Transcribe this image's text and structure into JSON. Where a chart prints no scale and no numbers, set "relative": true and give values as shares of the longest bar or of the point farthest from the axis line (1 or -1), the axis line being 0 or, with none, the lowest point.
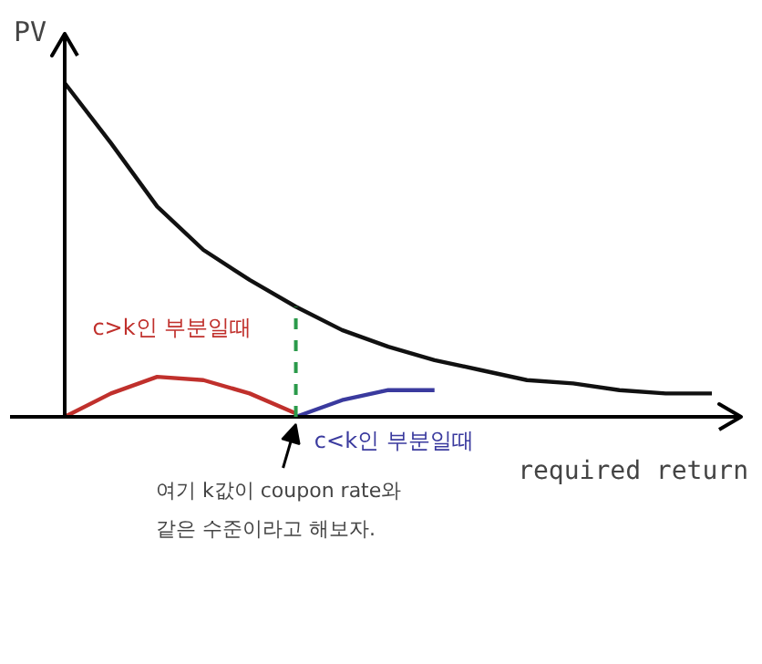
{
  "chart_data": {
    "type": "line",
    "relative": true,
    "xlabel": "required return",
    "ylabel": "PV",
    "categories": [
      null,
      null,
      null,
      null,
      null,
      null,
      null,
      null,
      null,
      null,
      null,
      null,
      null,
      null,
      null
    ],
    "series": [
      {
        "color": "#111111",
        "values": [
          1.0,
          0.82,
          0.63,
          0.5,
          0.41,
          0.33,
          0.26,
          0.21,
          0.17,
          0.14,
          0.11,
          0.1,
          0.08,
          0.07,
          0.07
        ]
      },
      {
        "name": "c>k인 부분일때",
        "color": "#c0302c",
        "values": [
          0,
          0.07,
          0.12,
          0.11,
          0.07,
          0.01,
          null,
          null,
          null,
          null,
          null,
          null,
          null,
          null,
          null
        ]
      },
      {
        "name": "c<k인 부분일때",
        "color": "#3a3a9e",
        "values": [
          null,
          null,
          null,
          null,
          null,
          0,
          0.05,
          0.08,
          0.08,
          null,
          null,
          null,
          null,
          null,
          null
        ]
      }
    ],
    "annotations": [
      "여기 k값이 coupon rate와\n같은 수준이라고 해보자."
    ],
    "grid": false,
    "marker": "none",
    "line_style": "solid"
  }
}
